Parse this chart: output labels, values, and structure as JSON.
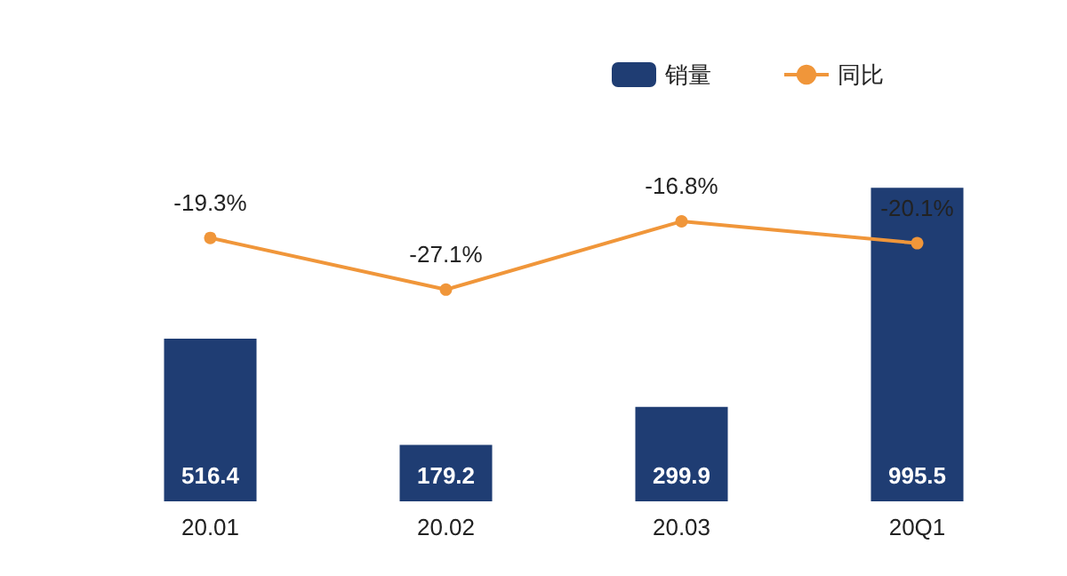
{
  "chart_data": {
    "type": "bar",
    "categories": [
      "20.01",
      "20.02",
      "20.03",
      "20Q1"
    ],
    "legend": "top right",
    "series": [
      {
        "name": "销量",
        "color": "#1f3d73",
        "values": [
          516.4,
          179.2,
          299.9,
          995.5
        ],
        "data_labels": true
      },
      {
        "name": "同比",
        "type": "line",
        "axis": "y2",
        "color": "#f0963a",
        "values": [
          -19.3,
          -27.1,
          -16.8,
          -20.1
        ],
        "value_labels": [
          "-19.3%",
          "-27.1%",
          "-16.8%",
          "-20.1%"
        ],
        "marker": "circle"
      }
    ]
  }
}
